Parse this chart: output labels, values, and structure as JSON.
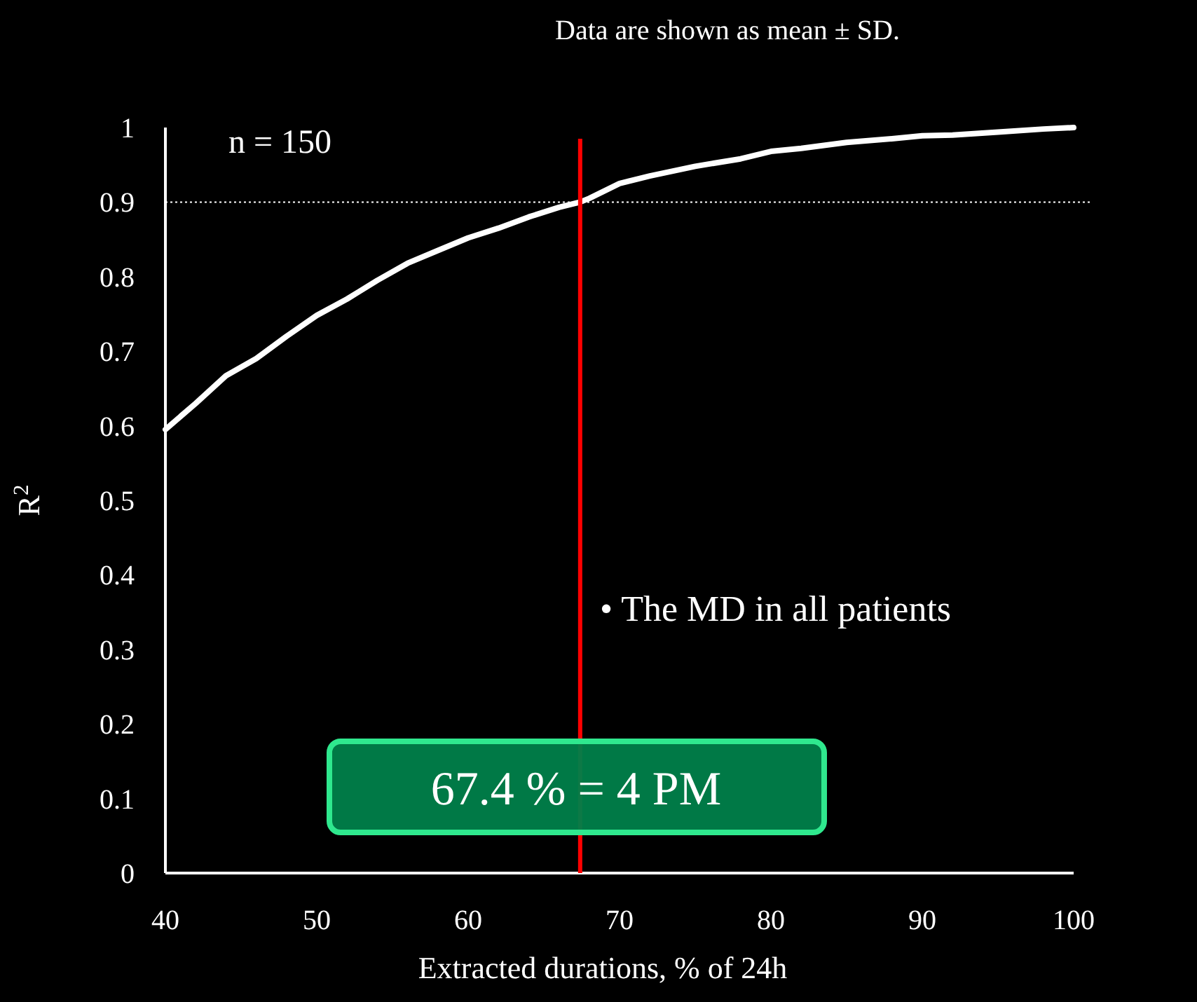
{
  "chart_data": {
    "type": "line",
    "xlabel": "Extracted durations, % of 24h",
    "ylabel": "R$^{2}$",
    "x": [
      40,
      42,
      44,
      46,
      48,
      50,
      52,
      54,
      56,
      58,
      60,
      62,
      64,
      66,
      67.4,
      68,
      70,
      72,
      75,
      78,
      80,
      82,
      85,
      88,
      90,
      92,
      95,
      98,
      100
    ],
    "series": [
      {
        "color": "#ffffff",
        "values": [
          0.595,
          0.63,
          0.667,
          0.69,
          0.72,
          0.748,
          0.77,
          0.795,
          0.818,
          0.835,
          0.852,
          0.865,
          0.88,
          0.893,
          0.9,
          0.905,
          0.925,
          0.935,
          0.948,
          0.958,
          0.968,
          0.972,
          0.98,
          0.985,
          0.989,
          0.99,
          0.994,
          0.998,
          1.0
        ]
      }
    ],
    "xlim": [
      40,
      100
    ],
    "xticks": [
      40,
      50,
      60,
      70,
      80,
      90,
      100
    ],
    "ylim": [
      0,
      1
    ],
    "yticks": [
      0,
      0.1,
      0.2,
      0.3,
      0.4,
      0.5,
      0.6,
      0.7,
      0.8,
      0.9,
      1
    ],
    "grid": false,
    "marker": "none",
    "line_style": "solid",
    "ref_lines": [
      {
        "axis": "y",
        "value": 0.9,
        "color": "#ffffff",
        "line_style": "dotted"
      },
      {
        "axis": "x",
        "value": 67.4,
        "color": "#ff0000",
        "line_style": "solid",
        "label": "67.4 % = 4 PM"
      }
    ],
    "annotations": [
      "Data are shown as mean ± SD.",
      "n = 150",
      "• The MD in all patients"
    ]
  }
}
